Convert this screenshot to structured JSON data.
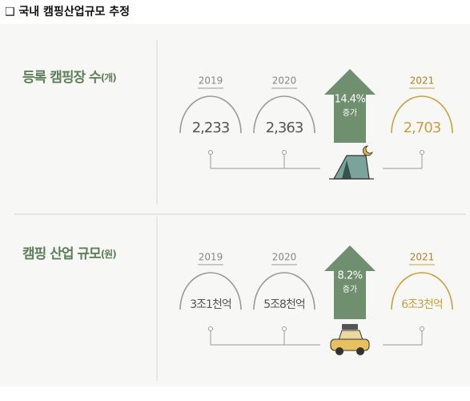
{
  "header": {
    "title": "❑ 국내 캠핑산업규모 추정"
  },
  "sections": [
    {
      "label": "등록 캠핑장 수",
      "unit": "(개)",
      "items": [
        {
          "year": "2019",
          "value": "2,233"
        },
        {
          "year": "2020",
          "value": "2,363"
        },
        {
          "year": "2021",
          "value": "2,703"
        }
      ],
      "growth": {
        "rate": "14.4%",
        "label": "증가"
      }
    },
    {
      "label": "캠핑 산업 규모",
      "unit": "(원)",
      "items": [
        {
          "year": "2019",
          "value": "3조1천억"
        },
        {
          "year": "2020",
          "value": "5조8천억"
        },
        {
          "year": "2021",
          "value": "6조3천억"
        }
      ],
      "growth": {
        "rate": "8.2%",
        "label": "증가"
      }
    }
  ]
}
